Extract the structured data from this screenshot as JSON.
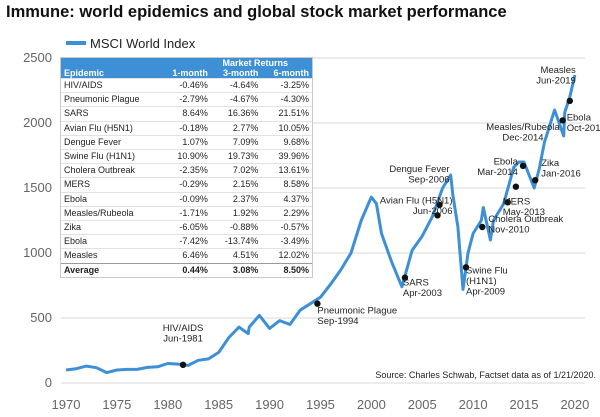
{
  "title": "Immune: world epidemics and global stock market performance",
  "legend_label": "MSCI World Index",
  "source_note": "Source: Charles Schwab, Factset data as of 1/21/2020.",
  "colors": {
    "line": "#3d8fd6",
    "marker": "#111111",
    "table_header": "#3d8fd6"
  },
  "table": {
    "group_header": "Market Returns",
    "columns": [
      "Epidemic",
      "1-month",
      "3-month",
      "6-month"
    ],
    "rows": [
      [
        "HIV/AIDS",
        "-0.46%",
        "-4.64%",
        "-3.25%"
      ],
      [
        "Pneumonic Plague",
        "-2.79%",
        "-4.67%",
        "-4.30%"
      ],
      [
        "SARS",
        "8.64%",
        "16.36%",
        "21.51%"
      ],
      [
        "Avian Flu (H5N1)",
        "-0.18%",
        "2.77%",
        "10.05%"
      ],
      [
        "Dengue Fever",
        "1.07%",
        "7.09%",
        "9.68%"
      ],
      [
        "Swine Flu (H1N1)",
        "10.90%",
        "19.73%",
        "39.96%"
      ],
      [
        "Cholera Outbreak",
        "-2.35%",
        "7.02%",
        "13.61%"
      ],
      [
        "MERS",
        "-0.29%",
        "2.15%",
        "8.58%"
      ],
      [
        "Ebola",
        "-0.09%",
        "2.37%",
        "4.37%"
      ],
      [
        "Measles/Rubeola",
        "-1.71%",
        "1.92%",
        "2.29%"
      ],
      [
        "Zika",
        "-6.05%",
        "-0.88%",
        "-0.57%"
      ],
      [
        "Ebola",
        "-7.42%",
        "-13.74%",
        "-3.49%"
      ],
      [
        "Measles",
        "6.46%",
        "4.51%",
        "12.02%"
      ]
    ],
    "average": [
      "Average",
      "0.44%",
      "3.08%",
      "8.50%"
    ]
  },
  "chart_data": {
    "type": "line",
    "title": "Immune: world epidemics and global stock market performance",
    "xlabel": "",
    "ylabel": "",
    "xlim": [
      1970,
      2020.5
    ],
    "ylim": [
      0,
      2500
    ],
    "x_ticks": [
      "1970",
      "1975",
      "1980",
      "1985",
      "1990",
      "1995",
      "2000",
      "2005",
      "2010",
      "2015",
      "2020"
    ],
    "y_ticks": [
      "0",
      "500",
      "1000",
      "1500",
      "2000",
      "2500"
    ],
    "grid": "horizontal",
    "legend_position": "top-left",
    "series": [
      {
        "name": "MSCI World Index",
        "points": [
          [
            1970,
            100
          ],
          [
            1971,
            110
          ],
          [
            1972,
            130
          ],
          [
            1973,
            118
          ],
          [
            1974,
            80
          ],
          [
            1975,
            100
          ],
          [
            1976,
            105
          ],
          [
            1977,
            105
          ],
          [
            1978,
            120
          ],
          [
            1979,
            125
          ],
          [
            1980,
            150
          ],
          [
            1981,
            145
          ],
          [
            1982,
            135
          ],
          [
            1983,
            175
          ],
          [
            1984,
            185
          ],
          [
            1985,
            235
          ],
          [
            1986,
            350
          ],
          [
            1987,
            430
          ],
          [
            1987.9,
            380
          ],
          [
            1988,
            430
          ],
          [
            1989,
            520
          ],
          [
            1990,
            420
          ],
          [
            1991,
            480
          ],
          [
            1992,
            450
          ],
          [
            1993,
            560
          ],
          [
            1994,
            610
          ],
          [
            1995,
            660
          ],
          [
            1996,
            760
          ],
          [
            1997,
            870
          ],
          [
            1998,
            1000
          ],
          [
            1999,
            1250
          ],
          [
            2000,
            1430
          ],
          [
            2000.5,
            1380
          ],
          [
            2001,
            1150
          ],
          [
            2002,
            930
          ],
          [
            2003,
            740
          ],
          [
            2003.5,
            880
          ],
          [
            2004,
            1020
          ],
          [
            2005,
            1130
          ],
          [
            2006,
            1280
          ],
          [
            2007,
            1500
          ],
          [
            2007.8,
            1600
          ],
          [
            2008,
            1450
          ],
          [
            2008.5,
            1200
          ],
          [
            2009,
            720
          ],
          [
            2009.5,
            1000
          ],
          [
            2010,
            1150
          ],
          [
            2010.8,
            1250
          ],
          [
            2011,
            1350
          ],
          [
            2011.7,
            1100
          ],
          [
            2012,
            1250
          ],
          [
            2013,
            1380
          ],
          [
            2014,
            1660
          ],
          [
            2014.5,
            1700
          ],
          [
            2015,
            1700
          ],
          [
            2015.7,
            1560
          ],
          [
            2016,
            1500
          ],
          [
            2016.5,
            1650
          ],
          [
            2017,
            1850
          ],
          [
            2018,
            2100
          ],
          [
            2018.9,
            1900
          ],
          [
            2019,
            2080
          ],
          [
            2019.5,
            2200
          ],
          [
            2020,
            2370
          ]
        ]
      }
    ],
    "annotations": [
      {
        "label": [
          "HIV/AIDS",
          "Jun-1981"
        ],
        "x": 1981.5,
        "y": 140
      },
      {
        "label": [
          "Pneumonic Plague",
          "Sep-1994"
        ],
        "x": 1994.7,
        "y": 610
      },
      {
        "label": [
          "SARS",
          "Apr-2003"
        ],
        "x": 2003.3,
        "y": 810
      },
      {
        "label": [
          "Dengue Fever",
          "Sep-2006"
        ],
        "x": 2006.7,
        "y": 1370
      },
      {
        "label": [
          "Avian Flu (H5N1)",
          "Jun-2006"
        ],
        "x": 2006.5,
        "y": 1290
      },
      {
        "label": [
          "Swine Flu",
          "(H1N1)",
          "Apr-2009"
        ],
        "x": 2009.3,
        "y": 890
      },
      {
        "label": [
          "Cholera Outbreak",
          "Nov-2010"
        ],
        "x": 2010.9,
        "y": 1200
      },
      {
        "label": [
          "MERS",
          "May-2013"
        ],
        "x": 2013.4,
        "y": 1390
      },
      {
        "label": [
          "Ebola",
          "Mar-2014"
        ],
        "x": 2014.2,
        "y": 1510
      },
      {
        "label": [
          "Measles/Rubeola",
          "Dec-2014"
        ],
        "x": 2014.9,
        "y": 1670
      },
      {
        "label": [
          "Zika",
          "Jan-2016"
        ],
        "x": 2016.1,
        "y": 1560
      },
      {
        "label": [
          "Ebola",
          "Oct-2018"
        ],
        "x": 2018.8,
        "y": 2020
      },
      {
        "label": [
          "Measles",
          "Jun-2019"
        ],
        "x": 2019.5,
        "y": 2170
      }
    ]
  }
}
